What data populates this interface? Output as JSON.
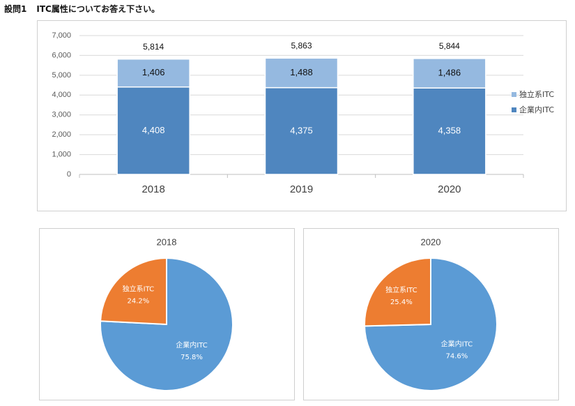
{
  "heading": {
    "number": "設問1",
    "text": "ITC属性についてお答え下さい。"
  },
  "colors": {
    "internal_bar": "#4f86bf",
    "independent_bar": "#95b9e0",
    "pie_internal": "#5b9bd5",
    "pie_independent": "#ed7d31"
  },
  "chart_data": [
    {
      "type": "bar",
      "stacked": true,
      "categories": [
        "2018",
        "2019",
        "2020"
      ],
      "series": [
        {
          "name": "企業内ITC",
          "values": [
            4408,
            4375,
            4358
          ],
          "labels": [
            "4,408",
            "4,375",
            "4,358"
          ]
        },
        {
          "name": "独立系ITC",
          "values": [
            1406,
            1488,
            1486
          ],
          "labels": [
            "1,406",
            "1,488",
            "1,486"
          ]
        }
      ],
      "totals": [
        5814,
        5863,
        5844
      ],
      "total_labels": [
        "5,814",
        "5,863",
        "5,844"
      ],
      "ylim": [
        0,
        7000
      ],
      "yticks": [
        0,
        1000,
        2000,
        3000,
        4000,
        5000,
        6000,
        7000
      ],
      "ytick_labels": [
        "0",
        "1,000",
        "2,000",
        "3,000",
        "4,000",
        "5,000",
        "6,000",
        "7,000"
      ],
      "grid": true,
      "legend": [
        "独立系ITC",
        "企業内ITC"
      ],
      "legend_position": "right"
    },
    {
      "type": "pie",
      "title": "2018",
      "slices": [
        {
          "name": "企業内ITC",
          "value": 75.8,
          "label": "75.8%"
        },
        {
          "name": "独立系ITC",
          "value": 24.2,
          "label": "24.2%"
        }
      ]
    },
    {
      "type": "pie",
      "title": "2020",
      "slices": [
        {
          "name": "企業内ITC",
          "value": 74.6,
          "label": "74.6%"
        },
        {
          "name": "独立系ITC",
          "value": 25.4,
          "label": "25.4%"
        }
      ]
    }
  ]
}
